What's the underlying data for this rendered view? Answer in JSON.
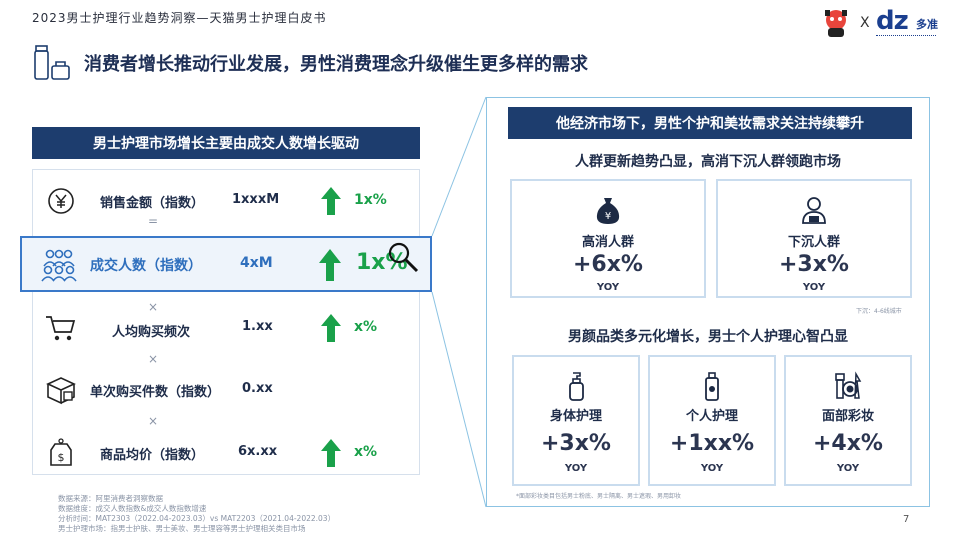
{
  "header": {
    "top_title": "2023男士护理行业趋势洞察—天猫男士护理白皮书",
    "logo_x": "X",
    "logo_dz": "dz",
    "logo_duozhun": "多准",
    "main_heading": "消费者增长推动行业发展，男性消费理念升级催生更多样的需求"
  },
  "left": {
    "header": "男士护理市场增长主要由成交人数增长驱动",
    "rows": [
      {
        "icon": "yen-icon",
        "label": "销售金额（指数）",
        "value": "1xxxM",
        "pct": "1x%"
      },
      {
        "icon": "people-group-icon",
        "label": "成交人数（指数）",
        "value": "4xM",
        "pct": "1x%"
      },
      {
        "icon": "cart-icon",
        "label": "人均购买频次",
        "value": "1.xx",
        "pct": "x%"
      },
      {
        "icon": "box-icon",
        "label": "单次购买件数（指数）",
        "value": "0.xx",
        "pct": ""
      },
      {
        "icon": "price-tag-icon",
        "label": "商品均价（指数）",
        "value": "6x.xx",
        "pct": "x%"
      }
    ],
    "operators": [
      "=",
      "×",
      "×",
      "×"
    ]
  },
  "right": {
    "header": "他经济市场下，男性个护和美妆需求关注持续攀升",
    "section1_title": "人群更新趋势凸显，高消下沉人群领跑市场",
    "section1_cards": [
      {
        "icon": "money-bag-icon",
        "name": "高消人群",
        "value": "+6x%",
        "yoy": "YOY"
      },
      {
        "icon": "person-badge-icon",
        "name": "下沉人群",
        "value": "+3x%",
        "yoy": "YOY"
      }
    ],
    "section1_note": "下沉：4-6线城市",
    "section2_title": "男颜品类多元化增长，男士个人护理心智凸显",
    "section2_cards": [
      {
        "icon": "lotion-bottle-icon",
        "name": "身体护理",
        "value": "+3x%",
        "yoy": "YOY"
      },
      {
        "icon": "spray-bottle-icon",
        "name": "个人护理",
        "value": "+1xx%",
        "yoy": "YOY"
      },
      {
        "icon": "makeup-icon",
        "name": "面部彩妆",
        "value": "+4x%",
        "yoy": "YOY"
      }
    ],
    "section2_note": "*面部彩妆类目包括男士粉底、男士隔离、男士遮瑕、男用卸妆"
  },
  "footnotes": [
    "数据来源：阿里消费者洞察数据",
    "数据维度：成交人数指数&成交人数指数增速",
    "分析时间：MAT2303（2022.04-2023.03）vs MAT2203（2021.04-2022.03）",
    "男士护理市场：指男士护肤、男士美妆、男士理容等男士护理相关类目市场"
  ],
  "page_number": "7",
  "colors": {
    "navy": "#1d3d6e",
    "green": "#1aa14a",
    "highlight_blue": "#2f6fbd",
    "panel_border": "#8cc3e3"
  }
}
